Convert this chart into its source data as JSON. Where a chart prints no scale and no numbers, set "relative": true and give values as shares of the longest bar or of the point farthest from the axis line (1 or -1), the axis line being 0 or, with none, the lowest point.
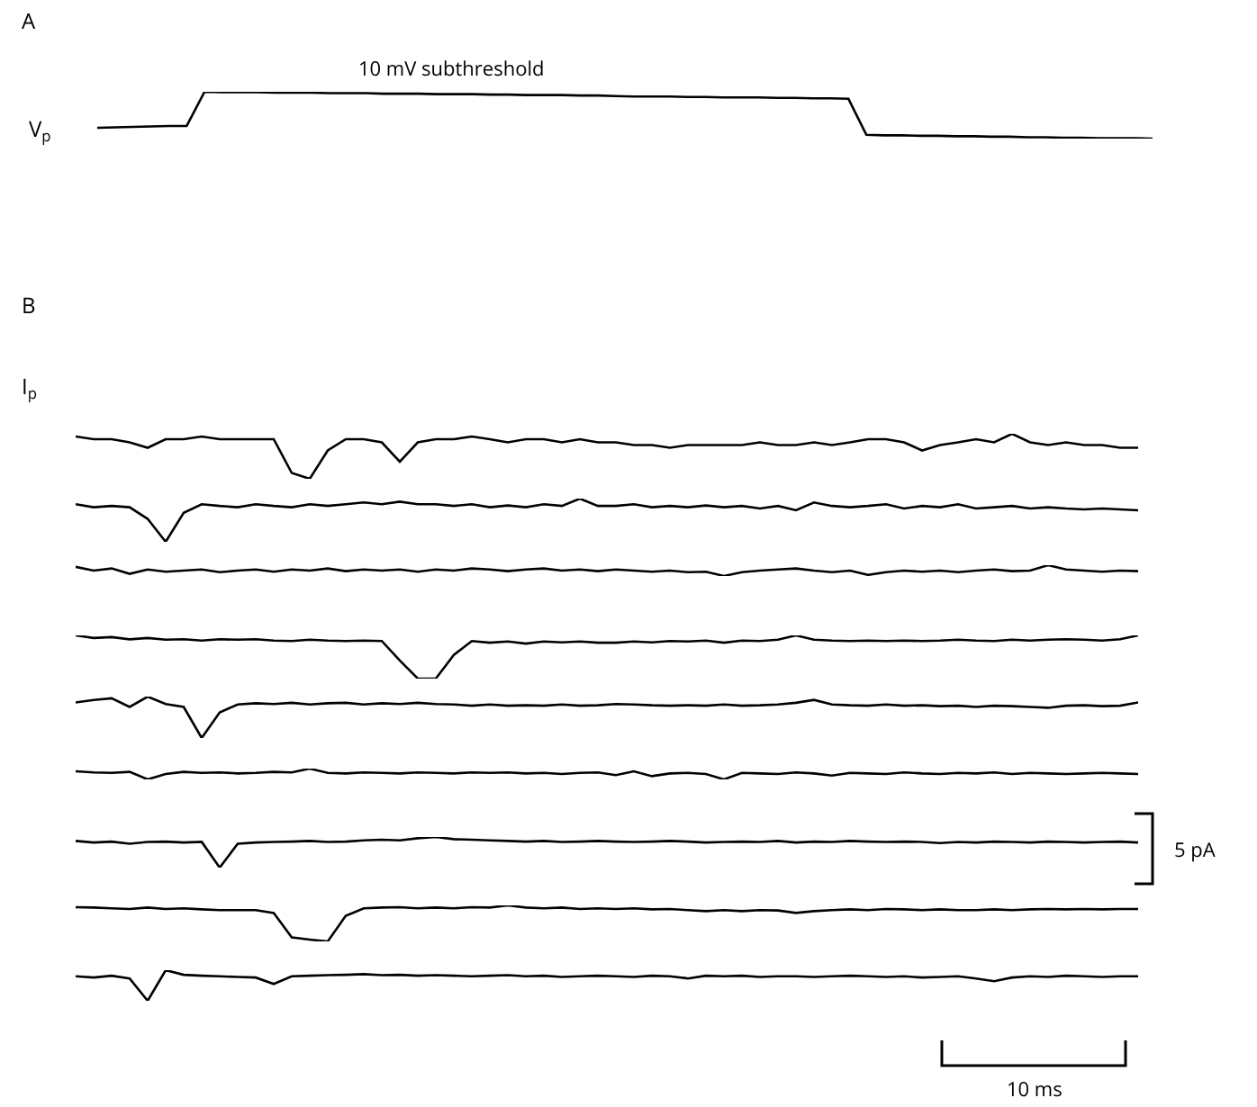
{
  "chart_data": [
    {
      "type": "line",
      "title": "A",
      "ylabel": "V$_{p}$",
      "annotations": [
        "10 mV subthreshold"
      ],
      "relative": true,
      "categories": [
        null,
        null,
        null,
        null,
        null,
        null,
        null,
        null,
        null,
        null,
        null,
        null,
        null,
        null,
        null,
        null,
        null,
        null,
        null,
        null,
        null,
        null,
        null,
        null,
        null,
        null,
        null,
        null,
        null,
        null,
        null,
        null,
        null,
        null,
        null,
        null,
        null,
        null,
        null,
        null,
        null,
        null,
        null,
        null,
        null,
        null,
        null,
        null,
        null,
        null,
        null,
        null,
        null,
        null,
        null,
        null,
        null,
        null,
        null,
        null
      ],
      "series": [
        {
          "color": "#000000",
          "values": [
            0.23,
            0.24,
            0.25,
            0.26,
            0.27,
            0.27,
            1,
            0.99,
            0.99,
            0.99,
            0.98,
            0.98,
            0.98,
            0.97,
            0.97,
            0.97,
            0.96,
            0.96,
            0.96,
            0.95,
            0.95,
            0.95,
            0.94,
            0.94,
            0.93,
            0.93,
            0.93,
            0.92,
            0.92,
            0.91,
            0.9,
            0.9,
            0.9,
            0.89,
            0.89,
            0.88,
            0.88,
            0.88,
            0.87,
            0.87,
            0.86,
            0.86,
            0.85,
            0.08,
            0.07,
            0.07,
            0.06,
            0.06,
            0.05,
            0.05,
            0.04,
            0.04,
            0.03,
            0.03,
            0.02,
            0.02,
            0.01,
            0.01,
            0.01,
            0
          ]
        }
      ]
    },
    {
      "type": "line",
      "title": "B",
      "ylabel": "I$_{p}$",
      "relative": true,
      "categories": [
        null,
        null,
        null,
        null,
        null,
        null,
        null,
        null,
        null,
        null,
        null,
        null,
        null,
        null,
        null,
        null,
        null,
        null,
        null,
        null,
        null,
        null,
        null,
        null,
        null,
        null,
        null,
        null,
        null,
        null,
        null,
        null,
        null,
        null,
        null,
        null,
        null,
        null,
        null,
        null,
        null,
        null,
        null,
        null,
        null,
        null,
        null,
        null,
        null,
        null,
        null,
        null,
        null,
        null,
        null,
        null,
        null,
        null,
        null,
        null
      ],
      "series": [
        {
          "color": "#000000",
          "values": [
            0.94,
            0.88,
            0.88,
            0.81,
            0.69,
            0.88,
            0.88,
            0.94,
            0.88,
            0.88,
            0.88,
            0.88,
            0.13,
            0,
            0.63,
            0.88,
            0.88,
            0.81,
            0.38,
            0.81,
            0.88,
            0.88,
            0.94,
            0.88,
            0.81,
            0.88,
            0.88,
            0.81,
            0.88,
            0.81,
            0.81,
            0.75,
            0.75,
            0.69,
            0.75,
            0.75,
            0.75,
            0.75,
            0.81,
            0.75,
            0.75,
            0.81,
            0.75,
            0.81,
            0.88,
            0.88,
            0.81,
            0.63,
            0.75,
            0.81,
            0.88,
            0.81,
            1,
            0.81,
            0.75,
            0.81,
            0.75,
            0.75,
            0.69,
            0.69
          ]
        }
      ]
    },
    {
      "type": "line",
      "relative": true,
      "categories": [
        null,
        null,
        null,
        null,
        null,
        null,
        null,
        null,
        null,
        null,
        null,
        null,
        null,
        null,
        null,
        null,
        null,
        null,
        null,
        null,
        null,
        null,
        null,
        null,
        null,
        null,
        null,
        null,
        null,
        null,
        null,
        null,
        null,
        null,
        null,
        null,
        null,
        null,
        null,
        null,
        null,
        null,
        null,
        null,
        null,
        null,
        null,
        null,
        null,
        null,
        null,
        null,
        null,
        null,
        null,
        null,
        null,
        null,
        null,
        null
      ],
      "series": [
        {
          "color": "#000000",
          "values": [
            0.87,
            0.8,
            0.83,
            0.8,
            0.53,
            0,
            0.67,
            0.87,
            0.83,
            0.8,
            0.87,
            0.83,
            0.8,
            0.87,
            0.83,
            0.87,
            0.91,
            0.87,
            0.93,
            0.87,
            0.87,
            0.83,
            0.87,
            0.8,
            0.84,
            0.8,
            0.87,
            0.83,
            1,
            0.83,
            0.83,
            0.87,
            0.8,
            0.83,
            0.8,
            0.84,
            0.8,
            0.83,
            0.77,
            0.83,
            0.73,
            0.91,
            0.83,
            0.8,
            0.83,
            0.87,
            0.77,
            0.83,
            0.8,
            0.87,
            0.77,
            0.8,
            0.83,
            0.77,
            0.8,
            0.77,
            0.75,
            0.77,
            0.75,
            0.73
          ]
        }
      ]
    },
    {
      "type": "line",
      "relative": true,
      "categories": [
        null,
        null,
        null,
        null,
        null,
        null,
        null,
        null,
        null,
        null,
        null,
        null,
        null,
        null,
        null,
        null,
        null,
        null,
        null,
        null,
        null,
        null,
        null,
        null,
        null,
        null,
        null,
        null,
        null,
        null,
        null,
        null,
        null,
        null,
        null,
        null,
        null,
        null,
        null,
        null,
        null,
        null,
        null,
        null,
        null,
        null,
        null,
        null,
        null,
        null,
        null,
        null,
        null,
        null,
        null,
        null,
        null,
        null,
        null,
        null
      ],
      "series": [
        {
          "color": "#000000",
          "values": [
            0.85,
            0.5,
            0.7,
            0.2,
            0.6,
            0.4,
            0.5,
            0.6,
            0.35,
            0.5,
            0.6,
            0.4,
            0.6,
            0.5,
            0.7,
            0.45,
            0.6,
            0.5,
            0.6,
            0.4,
            0.6,
            0.5,
            0.7,
            0.6,
            0.45,
            0.6,
            0.7,
            0.5,
            0.6,
            0.45,
            0.6,
            0.5,
            0.4,
            0.5,
            0.35,
            0.4,
            0,
            0.35,
            0.5,
            0.6,
            0.7,
            0.5,
            0.35,
            0.5,
            0.1,
            0.35,
            0.5,
            0.4,
            0.5,
            0.35,
            0.5,
            0.6,
            0.45,
            0.5,
            1,
            0.6,
            0.5,
            0.4,
            0.5,
            0.45
          ]
        }
      ]
    },
    {
      "type": "line",
      "relative": true,
      "categories": [
        null,
        null,
        null,
        null,
        null,
        null,
        null,
        null,
        null,
        null,
        null,
        null,
        null,
        null,
        null,
        null,
        null,
        null,
        null,
        null,
        null,
        null,
        null,
        null,
        null,
        null,
        null,
        null,
        null,
        null,
        null,
        null,
        null,
        null,
        null,
        null,
        null,
        null,
        null,
        null,
        null,
        null,
        null,
        null,
        null,
        null,
        null,
        null,
        null,
        null,
        null,
        null,
        null,
        null,
        null,
        null,
        null,
        null,
        null,
        null
      ],
      "series": [
        {
          "color": "#000000",
          "values": [
            1,
            0.94,
            0.96,
            0.91,
            0.94,
            0.9,
            0.91,
            0.88,
            0.91,
            0.9,
            0.91,
            0.88,
            0.87,
            0.9,
            0.88,
            0.87,
            0.88,
            0.87,
            0.42,
            0,
            0,
            0.55,
            0.87,
            0.83,
            0.86,
            0.81,
            0.86,
            0.84,
            0.86,
            0.83,
            0.83,
            0.86,
            0.84,
            0.87,
            0.86,
            0.88,
            0.83,
            0.88,
            0.87,
            0.9,
            1,
            0.9,
            0.88,
            0.87,
            0.88,
            0.87,
            0.88,
            0.87,
            0.88,
            0.9,
            0.88,
            0.87,
            0.9,
            0.88,
            0.9,
            0.91,
            0.9,
            0.88,
            0.91,
            1
          ]
        }
      ]
    },
    {
      "type": "line",
      "relative": true,
      "categories": [
        null,
        null,
        null,
        null,
        null,
        null,
        null,
        null,
        null,
        null,
        null,
        null,
        null,
        null,
        null,
        null,
        null,
        null,
        null,
        null,
        null,
        null,
        null,
        null,
        null,
        null,
        null,
        null,
        null,
        null,
        null,
        null,
        null,
        null,
        null,
        null,
        null,
        null,
        null,
        null,
        null,
        null,
        null,
        null,
        null,
        null,
        null,
        null,
        null,
        null,
        null,
        null,
        null,
        null,
        null,
        null,
        null,
        null,
        null,
        null
      ],
      "series": [
        {
          "color": "#000000",
          "values": [
            0.86,
            0.92,
            0.96,
            0.75,
            1,
            0.82,
            0.75,
            0,
            0.62,
            0.81,
            0.84,
            0.82,
            0.85,
            0.81,
            0.84,
            0.85,
            0.81,
            0.84,
            0.82,
            0.85,
            0.82,
            0.81,
            0.78,
            0.81,
            0.78,
            0.79,
            0.78,
            0.81,
            0.78,
            0.79,
            0.82,
            0.81,
            0.79,
            0.78,
            0.79,
            0.78,
            0.81,
            0.78,
            0.79,
            0.81,
            0.85,
            0.92,
            0.81,
            0.79,
            0.78,
            0.81,
            0.78,
            0.79,
            0.77,
            0.78,
            0.75,
            0.78,
            0.77,
            0.75,
            0.73,
            0.78,
            0.79,
            0.77,
            0.78,
            0.86
          ]
        }
      ]
    },
    {
      "type": "line",
      "relative": true,
      "categories": [
        null,
        null,
        null,
        null,
        null,
        null,
        null,
        null,
        null,
        null,
        null,
        null,
        null,
        null,
        null,
        null,
        null,
        null,
        null,
        null,
        null,
        null,
        null,
        null,
        null,
        null,
        null,
        null,
        null,
        null,
        null,
        null,
        null,
        null,
        null,
        null,
        null,
        null,
        null,
        null,
        null,
        null,
        null,
        null,
        null,
        null,
        null,
        null,
        null,
        null,
        null,
        null,
        null,
        null,
        null,
        null,
        null,
        null,
        null,
        null
      ],
      "series": [
        {
          "color": "#000000",
          "values": [
            0.75,
            0.65,
            0.6,
            0.7,
            0,
            0.5,
            0.7,
            0.6,
            0.65,
            0.55,
            0.6,
            0.7,
            0.65,
            1,
            0.6,
            0.55,
            0.65,
            0.6,
            0.55,
            0.65,
            0.6,
            0.55,
            0.65,
            0.6,
            0.65,
            0.55,
            0.6,
            0.5,
            0.6,
            0.65,
            0.4,
            0.75,
            0.3,
            0.55,
            0.6,
            0.5,
            0,
            0.6,
            0.55,
            0.5,
            0.65,
            0.55,
            0.35,
            0.6,
            0.55,
            0.5,
            0.65,
            0.55,
            0.5,
            0.6,
            0.55,
            0.65,
            0.5,
            0.6,
            0.55,
            0.5,
            0.55,
            0.6,
            0.55,
            0.5
          ]
        }
      ]
    },
    {
      "type": "line",
      "relative": true,
      "annotations": [
        "5 pA"
      ],
      "categories": [
        null,
        null,
        null,
        null,
        null,
        null,
        null,
        null,
        null,
        null,
        null,
        null,
        null,
        null,
        null,
        null,
        null,
        null,
        null,
        null,
        null,
        null,
        null,
        null,
        null,
        null,
        null,
        null,
        null,
        null,
        null,
        null,
        null,
        null,
        null,
        null,
        null,
        null,
        null,
        null,
        null,
        null,
        null,
        null,
        null,
        null,
        null,
        null,
        null,
        null,
        null,
        null,
        null,
        null,
        null,
        null,
        null,
        null,
        null,
        null
      ],
      "series": [
        {
          "color": "#000000",
          "values": [
            0.87,
            0.82,
            0.85,
            0.78,
            0.84,
            0.85,
            0.82,
            0.84,
            0,
            0.78,
            0.82,
            0.84,
            0.85,
            0.87,
            0.84,
            0.85,
            0.89,
            0.91,
            0.89,
            0.96,
            1,
            0.93,
            0.91,
            0.89,
            0.87,
            0.85,
            0.87,
            0.84,
            0.85,
            0.87,
            0.85,
            0.84,
            0.85,
            0.87,
            0.85,
            0.82,
            0.84,
            0.85,
            0.84,
            0.87,
            0.82,
            0.85,
            0.84,
            0.87,
            0.85,
            0.84,
            0.85,
            0.84,
            0.8,
            0.84,
            0.82,
            0.85,
            0.84,
            0.82,
            0.85,
            0.84,
            0.82,
            0.84,
            0.85,
            0.82
          ]
        }
      ]
    },
    {
      "type": "line",
      "relative": true,
      "categories": [
        null,
        null,
        null,
        null,
        null,
        null,
        null,
        null,
        null,
        null,
        null,
        null,
        null,
        null,
        null,
        null,
        null,
        null,
        null,
        null,
        null,
        null,
        null,
        null,
        null,
        null,
        null,
        null,
        null,
        null,
        null,
        null,
        null,
        null,
        null,
        null,
        null,
        null,
        null,
        null,
        null,
        null,
        null,
        null,
        null,
        null,
        null,
        null,
        null,
        null,
        null,
        null,
        null,
        null,
        null,
        null,
        null,
        null,
        null,
        null
      ],
      "series": [
        {
          "color": "#000000",
          "values": [
            0.95,
            0.94,
            0.92,
            0.9,
            0.94,
            0.9,
            0.92,
            0.89,
            0.87,
            0.87,
            0.87,
            0.79,
            0.11,
            0.05,
            0,
            0.71,
            0.92,
            0.94,
            0.95,
            0.92,
            0.94,
            0.92,
            0.95,
            0.94,
            1,
            0.94,
            0.92,
            0.94,
            0.9,
            0.92,
            0.9,
            0.92,
            0.89,
            0.9,
            0.87,
            0.84,
            0.87,
            0.84,
            0.87,
            0.86,
            0.79,
            0.84,
            0.87,
            0.89,
            0.87,
            0.9,
            0.89,
            0.87,
            0.89,
            0.87,
            0.87,
            0.89,
            0.87,
            0.89,
            0.9,
            0.89,
            0.9,
            0.89,
            0.9,
            0.9
          ]
        }
      ]
    },
    {
      "type": "line",
      "relative": true,
      "annotations": [
        "10 ms"
      ],
      "categories": [
        null,
        null,
        null,
        null,
        null,
        null,
        null,
        null,
        null,
        null,
        null,
        null,
        null,
        null,
        null,
        null,
        null,
        null,
        null,
        null,
        null,
        null,
        null,
        null,
        null,
        null,
        null,
        null,
        null,
        null,
        null,
        null,
        null,
        null,
        null,
        null,
        null,
        null,
        null,
        null,
        null,
        null,
        null,
        null,
        null,
        null,
        null,
        null,
        null,
        null,
        null,
        null,
        null,
        null,
        null,
        null,
        null,
        null,
        null,
        null
      ],
      "series": [
        {
          "color": "#000000",
          "values": [
            0.8,
            0.76,
            0.82,
            0.73,
            0,
            1,
            0.85,
            0.82,
            0.8,
            0.78,
            0.76,
            0.55,
            0.8,
            0.82,
            0.84,
            0.85,
            0.87,
            0.84,
            0.85,
            0.82,
            0.84,
            0.82,
            0.8,
            0.82,
            0.84,
            0.8,
            0.82,
            0.78,
            0.8,
            0.82,
            0.8,
            0.78,
            0.82,
            0.8,
            0.73,
            0.82,
            0.8,
            0.82,
            0.78,
            0.8,
            0.8,
            0.78,
            0.8,
            0.82,
            0.8,
            0.78,
            0.8,
            0.76,
            0.78,
            0.8,
            0.73,
            0.64,
            0.76,
            0.8,
            0.78,
            0.82,
            0.8,
            0.78,
            0.8,
            0.8
          ]
        }
      ]
    }
  ]
}
